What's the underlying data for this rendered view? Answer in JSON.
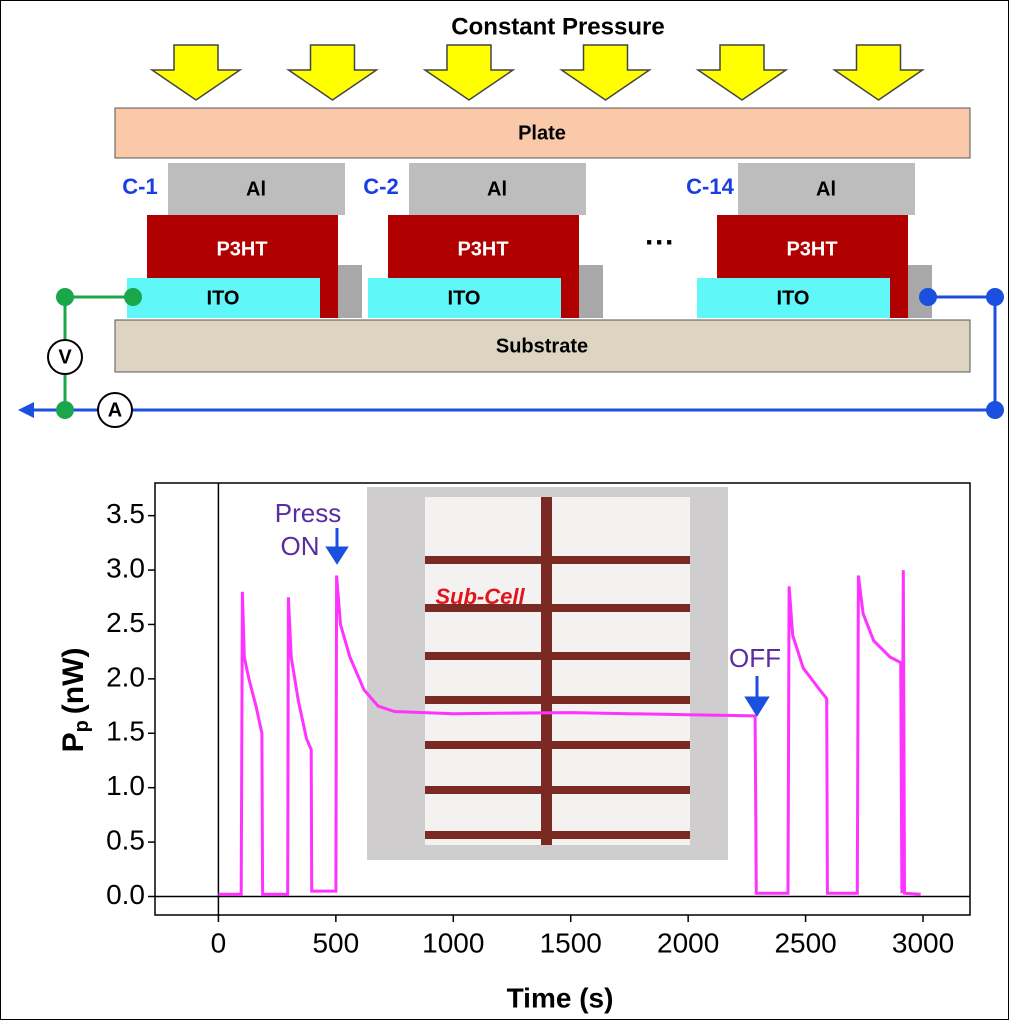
{
  "diagram": {
    "title": "Constant Pressure",
    "plate": "Plate",
    "substrate": "Substrate",
    "cells": [
      {
        "name": "C-1",
        "layers": [
          "Al",
          "P3HT",
          "ITO"
        ]
      },
      {
        "name": "C-2",
        "layers": [
          "Al",
          "P3HT",
          "ITO"
        ]
      },
      {
        "name": "C-14",
        "layers": [
          "Al",
          "P3HT",
          "ITO"
        ]
      }
    ],
    "ellipsis": "···",
    "meters": [
      "V",
      "A"
    ]
  },
  "chart_data": {
    "type": "line",
    "x_label": "Time (s)",
    "y_label": {
      "main": "P",
      "subscript": "p",
      "unit": "(nW)"
    },
    "annotations": [
      "Press",
      "ON",
      "OFF",
      "Sub-Cell"
    ],
    "color": "#ff33ff",
    "xlim": [
      -270,
      3200
    ],
    "ylim": [
      -0.17,
      3.8
    ],
    "xticks": [
      0,
      500,
      1000,
      1500,
      2000,
      2500,
      3000
    ],
    "yticks": [
      {
        "value": 0,
        "label": "0.0"
      },
      0.5,
      {
        "value": 1,
        "label": "1.0"
      },
      1.5,
      {
        "value": 2,
        "label": "2.0"
      },
      2.5,
      {
        "value": 3,
        "label": "3.0"
      },
      3.5
    ],
    "x": [
      0,
      97,
      102,
      110,
      130,
      160,
      185,
      188,
      295,
      298,
      310,
      340,
      375,
      395,
      397,
      500,
      503,
      520,
      560,
      620,
      680,
      750,
      1000,
      1500,
      2000,
      2285,
      2290,
      2425,
      2430,
      2445,
      2490,
      2560,
      2590,
      2593,
      2720,
      2725,
      2745,
      2790,
      2860,
      2905,
      2910,
      2916,
      2921,
      2990
    ],
    "values": [
      0.02,
      0.02,
      2.8,
      2.2,
      2.0,
      1.75,
      1.5,
      0.02,
      0.02,
      2.75,
      2.2,
      1.8,
      1.45,
      1.35,
      0.05,
      0.05,
      2.95,
      2.5,
      2.2,
      1.9,
      1.75,
      1.7,
      1.68,
      1.69,
      1.67,
      1.66,
      0.03,
      0.03,
      2.85,
      2.4,
      2.1,
      1.9,
      1.82,
      0.03,
      0.03,
      2.95,
      2.6,
      2.35,
      2.2,
      2.15,
      0.03,
      3.0,
      0.03,
      0.02
    ]
  }
}
